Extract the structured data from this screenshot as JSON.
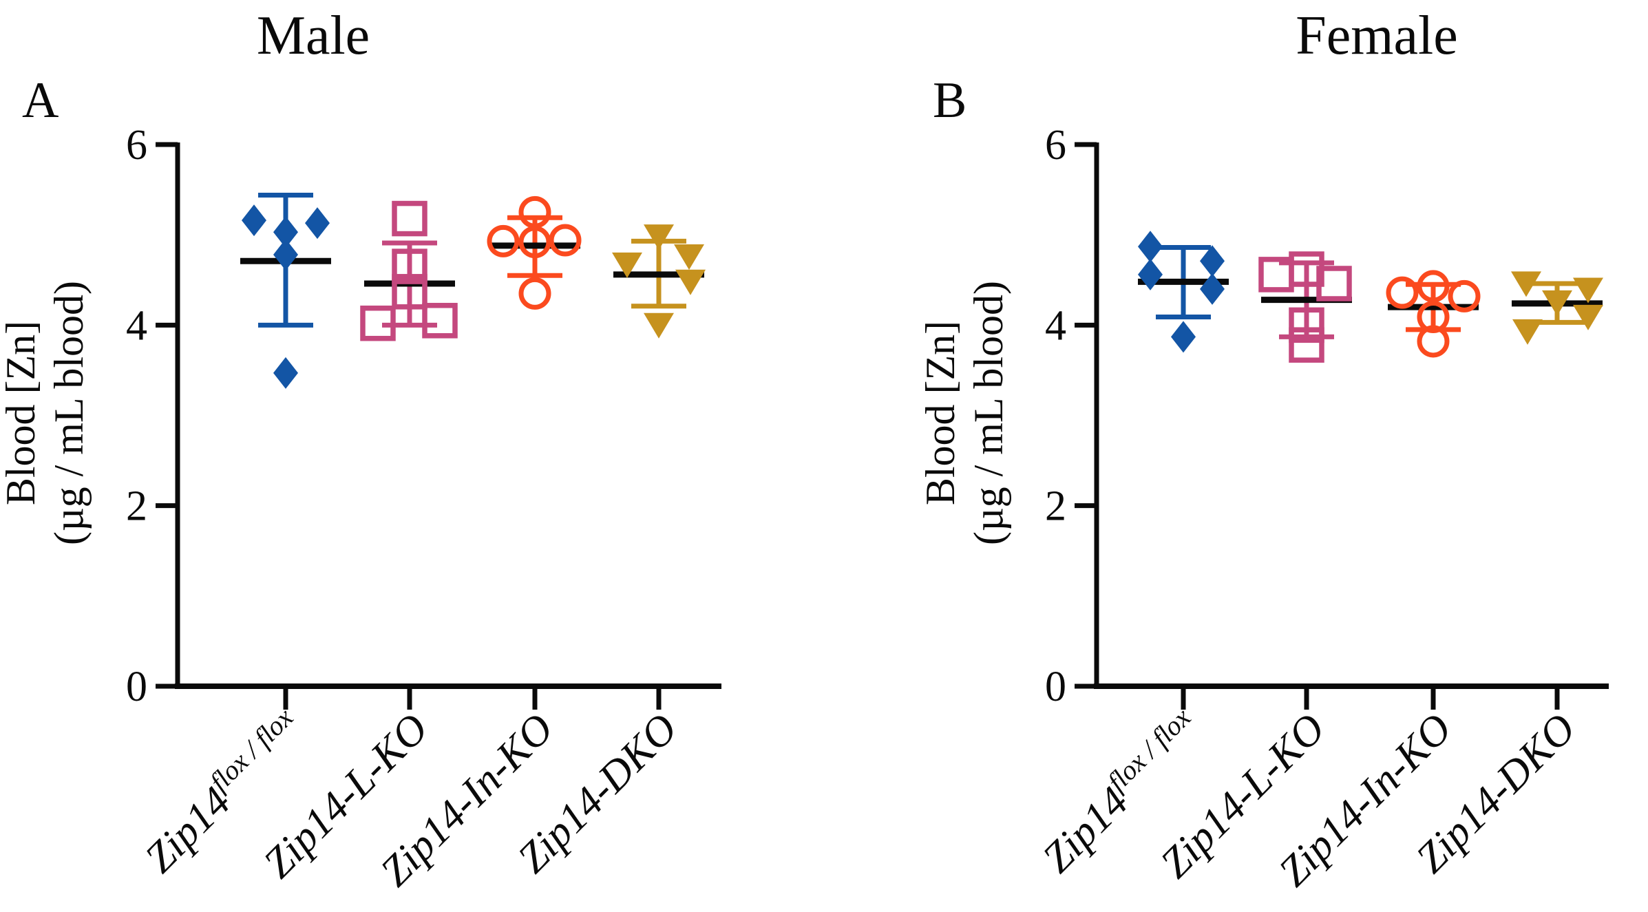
{
  "figure": {
    "background": "#ffffff",
    "text_color": "#0a0a0a",
    "error_bar_type": "mean ± SD"
  },
  "chart_data": [
    {
      "type": "scatter",
      "panel_letter": "A",
      "title": "Male",
      "ylabel_line1": "Blood [Zn]",
      "ylabel_line2": "(µg / mL blood)",
      "ylim": [
        0,
        6
      ],
      "yticks": [
        0,
        2,
        4,
        6
      ],
      "grid": false,
      "categories": [
        "Zip14 flox/flox",
        "Zip14-L-KO",
        "Zip14-In-KO",
        "Zip14-DKO"
      ],
      "series": [
        {
          "label_base": "Zip14",
          "label_sup": "flox / flox",
          "label_rest": "",
          "marker": "filled-diamond",
          "color": "#1355A5",
          "values": [
            5.16,
            5.13,
            5.03,
            4.78,
            3.47
          ],
          "x_jitter": [
            -46,
            46,
            0,
            0,
            0
          ],
          "mean": 4.71,
          "sd_low": 4.0,
          "sd_high": 5.44
        },
        {
          "label_base": "Zip14",
          "label_sup": "",
          "label_rest": "-L-KO",
          "marker": "open-square",
          "color": "#C4487E",
          "values": [
            5.18,
            4.65,
            4.37,
            4.05,
            4.02
          ],
          "x_jitter": [
            0,
            0,
            0,
            44,
            -46
          ],
          "mean": 4.46,
          "sd_low": 4.0,
          "sd_high": 4.91
        },
        {
          "label_base": "Zip14",
          "label_sup": "",
          "label_rest": "-In-KO",
          "marker": "open-circle",
          "color": "#FB4A1E",
          "values": [
            5.25,
            4.94,
            4.93,
            4.92,
            4.35
          ],
          "x_jitter": [
            0,
            44,
            -46,
            0,
            0
          ],
          "mean": 4.88,
          "sd_low": 4.55,
          "sd_high": 5.19
        },
        {
          "label_base": "Zip14",
          "label_sup": "",
          "label_rest": "-DKO",
          "marker": "filled-triangle-down",
          "color": "#C6921E",
          "values": [
            5.0,
            4.78,
            4.69,
            4.5,
            4.02
          ],
          "x_jitter": [
            0,
            44,
            -46,
            46,
            0
          ],
          "mean": 4.56,
          "sd_low": 4.21,
          "sd_high": 4.93
        }
      ]
    },
    {
      "type": "scatter",
      "panel_letter": "B",
      "title": "Female",
      "ylabel_line1": "Blood [Zn]",
      "ylabel_line2": "(µg / mL blood)",
      "ylim": [
        0,
        6
      ],
      "yticks": [
        0,
        2,
        4,
        6
      ],
      "grid": false,
      "categories": [
        "Zip14 flox/flox",
        "Zip14-L-KO",
        "Zip14-In-KO",
        "Zip14-DKO"
      ],
      "series": [
        {
          "label_base": "Zip14",
          "label_sup": "flox / flox",
          "label_rest": "",
          "marker": "filled-diamond",
          "color": "#1355A5",
          "values": [
            4.87,
            4.71,
            4.56,
            4.4,
            3.87
          ],
          "x_jitter": [
            -48,
            42,
            -48,
            42,
            0
          ],
          "mean": 4.48,
          "sd_low": 4.09,
          "sd_high": 4.86
        },
        {
          "label_base": "Zip14",
          "label_sup": "",
          "label_rest": "-L-KO",
          "marker": "open-square",
          "color": "#C4487E",
          "values": [
            4.62,
            4.56,
            4.46,
            4.0,
            3.78
          ],
          "x_jitter": [
            0,
            -44,
            40,
            0,
            0
          ],
          "mean": 4.28,
          "sd_low": 3.87,
          "sd_high": 4.69
        },
        {
          "label_base": "Zip14",
          "label_sup": "",
          "label_rest": "-In-KO",
          "marker": "open-circle",
          "color": "#FB4A1E",
          "values": [
            4.43,
            4.36,
            4.32,
            4.09,
            3.82
          ],
          "x_jitter": [
            0,
            -45,
            45,
            0,
            0
          ],
          "mean": 4.2,
          "sd_low": 3.95,
          "sd_high": 4.45
        },
        {
          "label_base": "Zip14",
          "label_sup": "",
          "label_rest": "-DKO",
          "marker": "filled-triangle-down",
          "color": "#C6921E",
          "values": [
            4.48,
            4.41,
            4.27,
            4.11,
            3.95
          ],
          "x_jitter": [
            -45,
            45,
            0,
            45,
            -43
          ],
          "mean": 4.24,
          "sd_low": 4.03,
          "sd_high": 4.46
        }
      ]
    }
  ]
}
